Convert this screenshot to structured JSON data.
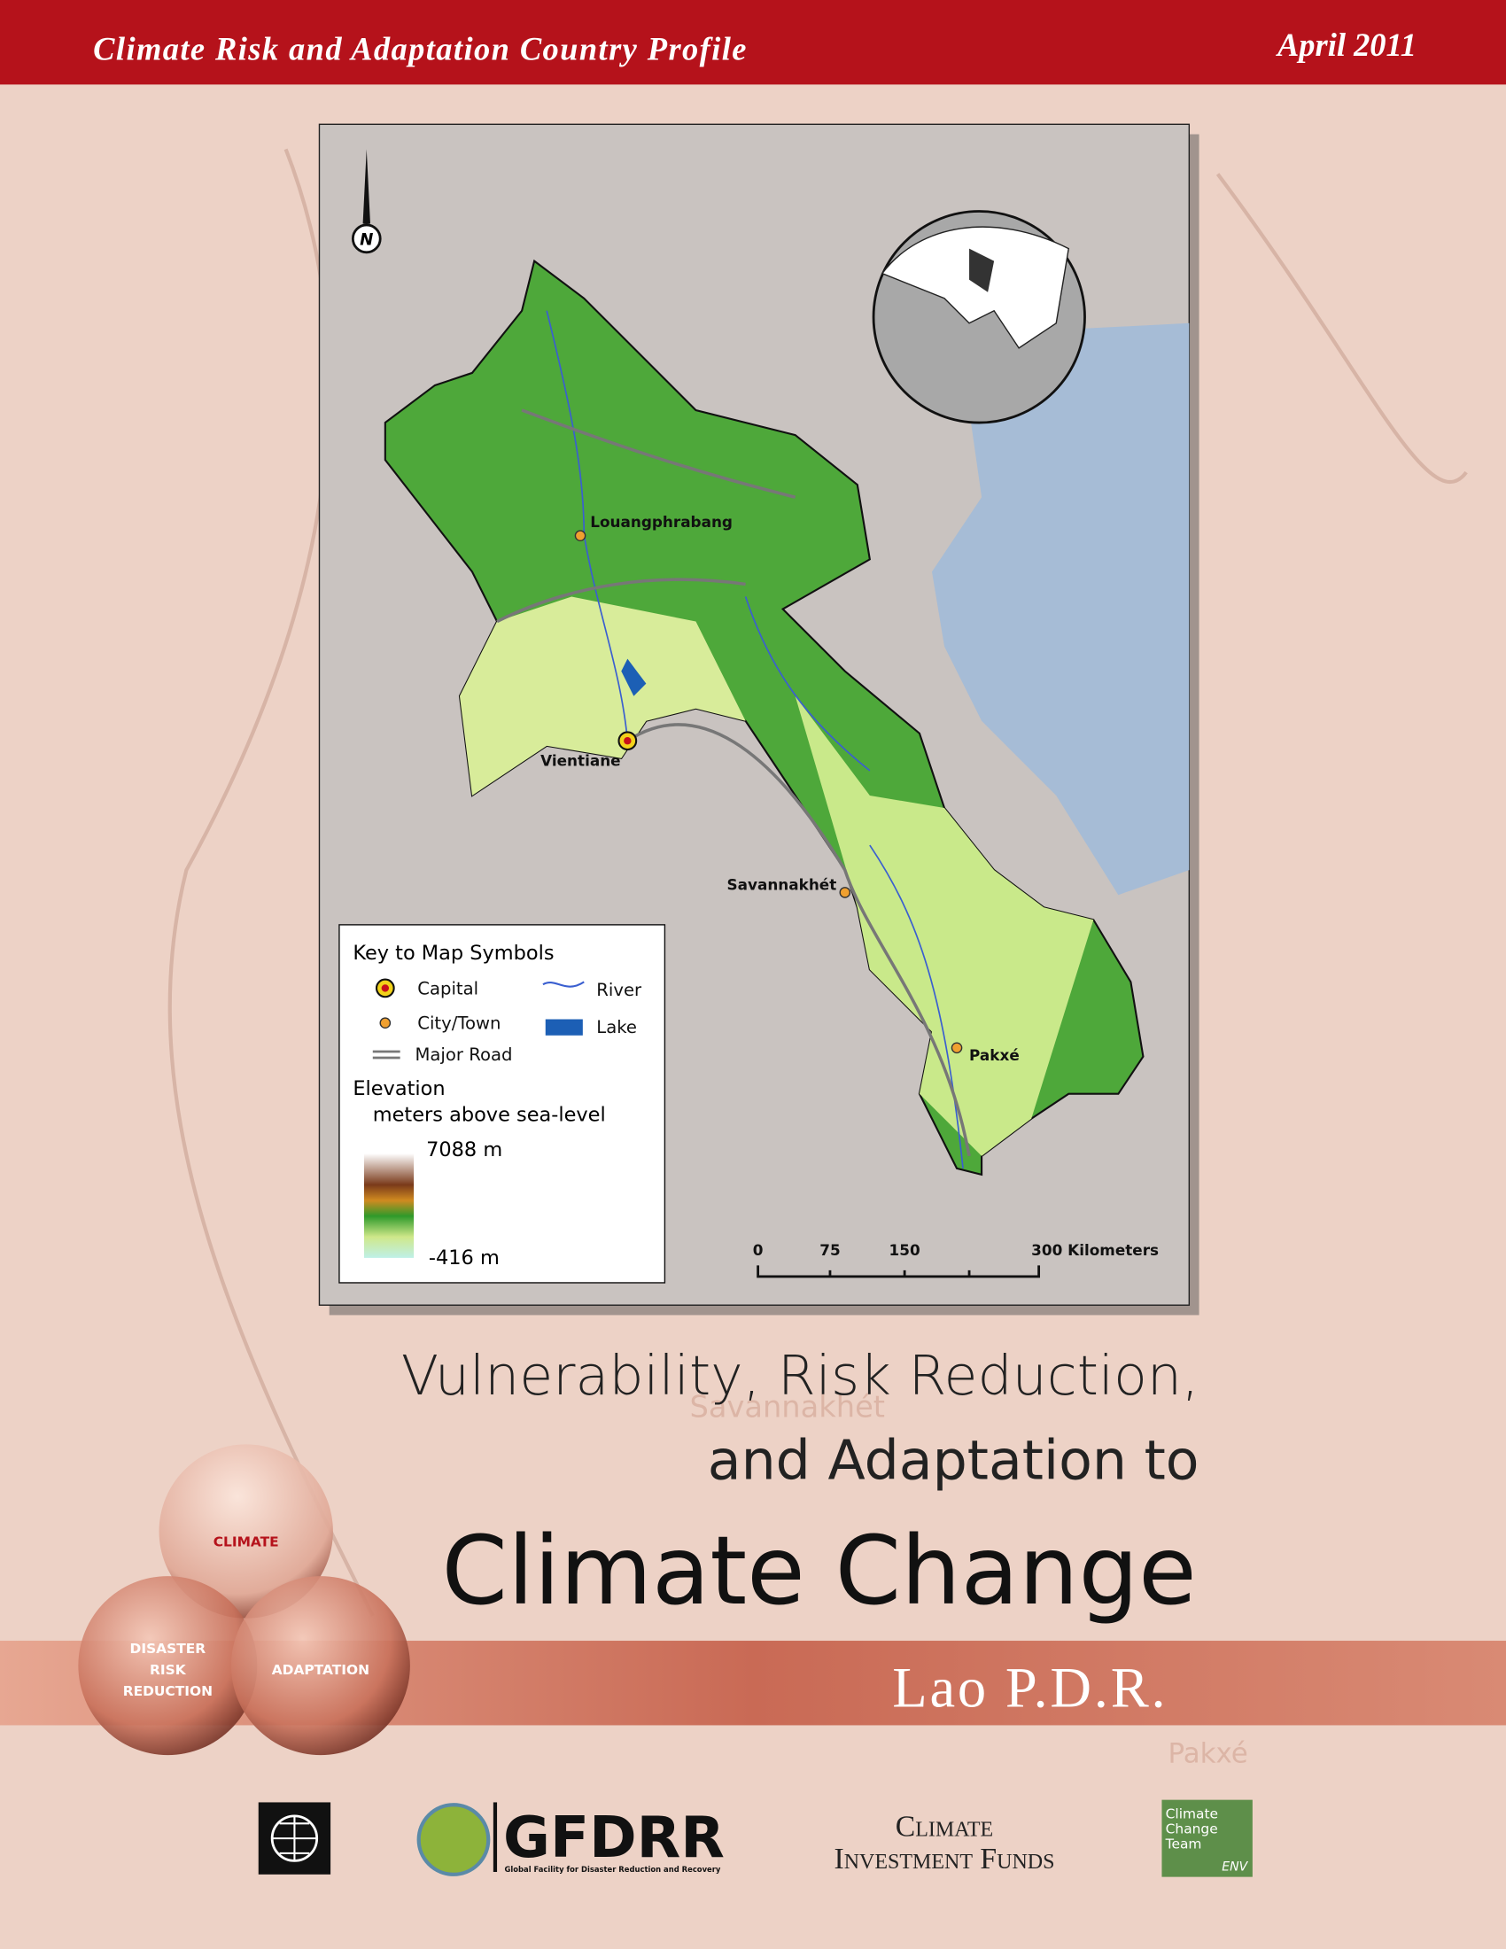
{
  "header": {
    "title": "Climate Risk and Adaptation Country Profile",
    "date": "April 2011"
  },
  "map": {
    "cities": [
      {
        "name": "Louangphrabang"
      },
      {
        "name": "Vientiane"
      },
      {
        "name": "Savannakhét"
      },
      {
        "name": "Pakxé"
      }
    ],
    "legend": {
      "title": "Key to Map Symbols",
      "capital": "Capital",
      "city": "City/Town",
      "road": "Major Road",
      "river": "River",
      "lake": "Lake",
      "elevation_title": "Elevation",
      "elevation_subtitle": "meters above sea-level",
      "elevation_max": "7088 m",
      "elevation_min": "-416 m"
    },
    "scale": [
      "0",
      "75",
      "150",
      "300 Kilometers"
    ],
    "north": "N"
  },
  "watermarks": [
    "Savannakhét",
    "Pakxé"
  ],
  "title": {
    "line1": "Vulnerability, Risk Reduction,",
    "line2": "and Adaptation to",
    "line3": "Climate Change",
    "country": "Lao P.D.R."
  },
  "venn": {
    "top": "CLIMATE",
    "left": [
      "DISASTER",
      "RISK",
      "REDUCTION"
    ],
    "right": "ADAPTATION"
  },
  "logos": {
    "gfdrr": "GFDRR",
    "gfdrr_sub": "Global Facility for Disaster Reduction and Recovery",
    "cif": [
      "Climate",
      "Investment Funds"
    ],
    "cct": [
      "Climate",
      "Change",
      "Team",
      "ENV"
    ]
  }
}
